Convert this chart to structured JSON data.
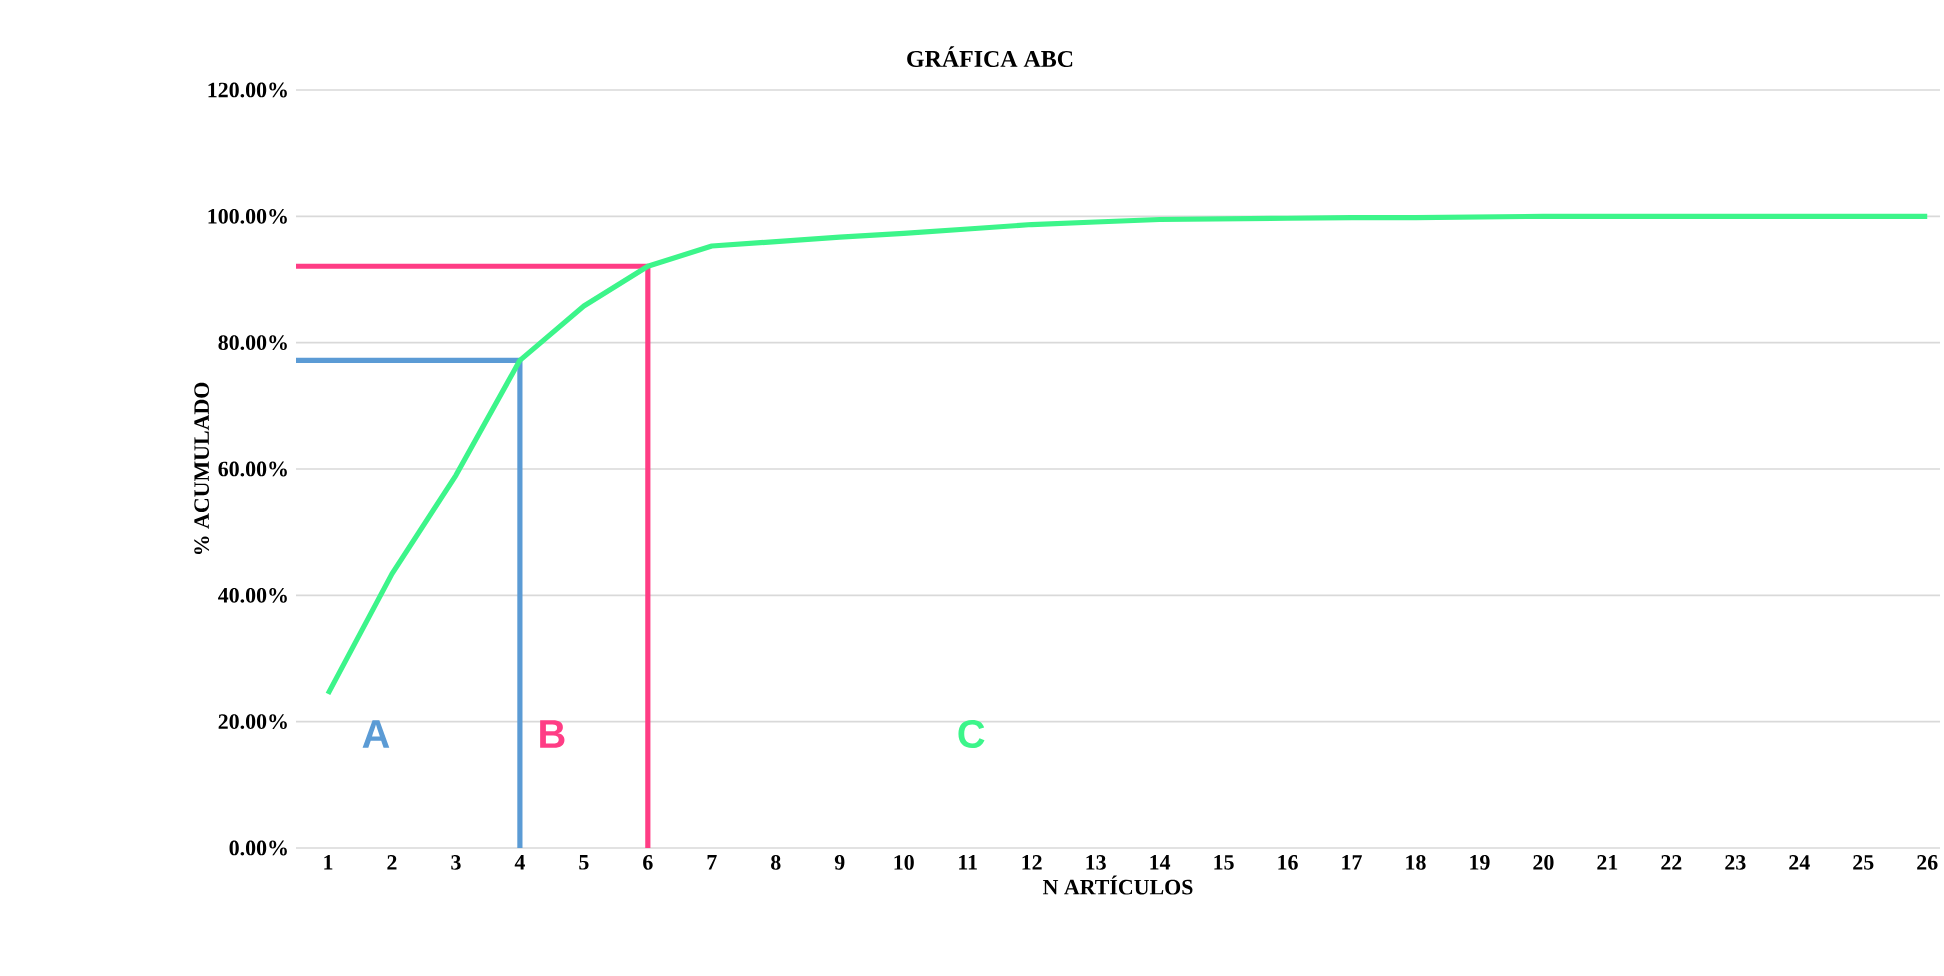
{
  "chart_data": {
    "type": "line",
    "title": "GRÁFICA ABC",
    "xlabel": "N ARTÍCULOS",
    "ylabel": "% ACUMULADO",
    "x": [
      1,
      2,
      3,
      4,
      5,
      6,
      7,
      8,
      9,
      10,
      11,
      12,
      13,
      14,
      15,
      16,
      17,
      18,
      19,
      20,
      21,
      22,
      23,
      24,
      25,
      26
    ],
    "series": [
      {
        "color": "#5b9bd5",
        "x": [
          0.5,
          4,
          4
        ],
        "values": [
          77.2,
          77.2,
          0
        ]
      },
      {
        "color": "#ff3d85",
        "x": [
          0.5,
          6,
          6
        ],
        "values": [
          92.1,
          92.1,
          0
        ]
      },
      {
        "color": "#3cf58a",
        "values": [
          24.4,
          43.4,
          59,
          77.2,
          85.8,
          92.1,
          95.3,
          96,
          96.7,
          97.3,
          98,
          98.7,
          99.1,
          99.5,
          99.6,
          99.7,
          99.8,
          99.8,
          99.9,
          100,
          100,
          100,
          100,
          100,
          100,
          100
        ]
      }
    ],
    "annotations": [
      "A",
      "B",
      "C"
    ],
    "xlim": [
      0.5,
      26.2
    ],
    "ylim": [
      0,
      120
    ],
    "xticks": [
      1,
      2,
      3,
      4,
      5,
      6,
      7,
      8,
      9,
      10,
      11,
      12,
      13,
      14,
      15,
      16,
      17,
      18,
      19,
      20,
      21,
      22,
      23,
      24,
      25,
      26
    ],
    "yticks": [
      {
        "value": 0,
        "label": "0.00%"
      },
      {
        "value": 20,
        "label": "20.00%"
      },
      {
        "value": 40,
        "label": "40.00%"
      },
      {
        "value": 60,
        "label": "60.00%"
      },
      {
        "value": 80,
        "label": "80.00%"
      },
      {
        "value": 100,
        "label": "100.00%"
      },
      {
        "value": 120,
        "label": "120.00%"
      }
    ],
    "grid": "y",
    "marker": "none",
    "line_style": "solid"
  }
}
